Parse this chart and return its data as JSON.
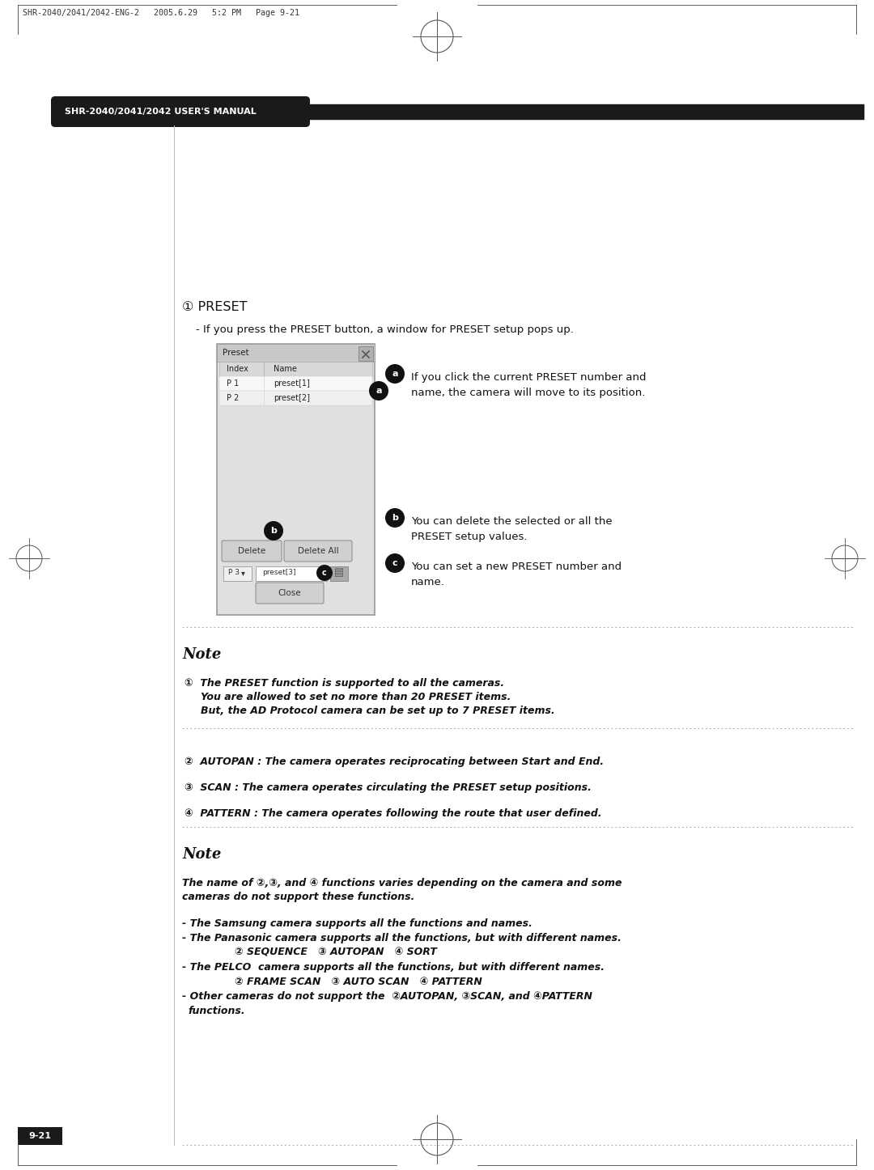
{
  "bg_color": "#ffffff",
  "header_bg": "#1a1a1a",
  "header_text": "SHR-2040/2041/2042 USER'S MANUAL",
  "header_text_color": "#ffffff",
  "top_label": "SHR-2040/2041/2042-ENG-2   2005.6.29   5:2 PM   Page 9-21",
  "page_number": "9-21",
  "section1_title": "① PRESET",
  "section1_sub": "- If you press the PRESET button, a window for PRESET setup pops up.",
  "annot_a": "If you click the current PRESET number and\nname, the camera will move to its position.",
  "annot_b": "You can delete the selected or all the\nPRESET setup values.",
  "annot_c": "You can set a new PRESET number and\nname.",
  "note1_title": "Note",
  "note2_title": "Note"
}
